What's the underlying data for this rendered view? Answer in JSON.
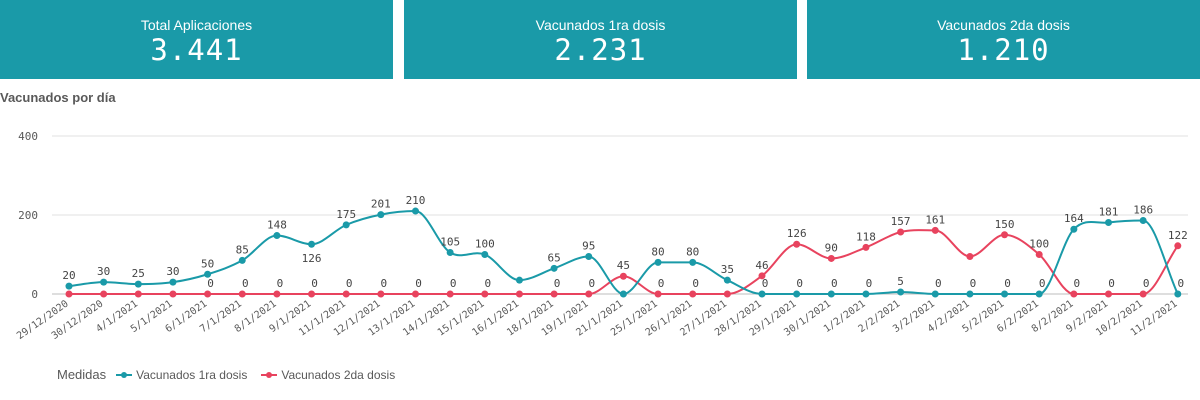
{
  "kpis": [
    {
      "label": "Total Aplicaciones",
      "value": "3.441"
    },
    {
      "label": "Vacunados 1ra dosis",
      "value": "2.231"
    },
    {
      "label": "Vacunados 2da dosis",
      "value": "1.210"
    }
  ],
  "legend": {
    "title": "Medidas"
  },
  "colors": {
    "kpi_bg": "#1a9aa8",
    "series1": "#1a9aa8",
    "series2": "#e8435e",
    "grid": "#e2e2e2",
    "axis_text": "#595959"
  },
  "chart_data": {
    "type": "line",
    "title": "Vacunados por día",
    "xlabel": "",
    "ylabel": "",
    "ylim": [
      0,
      400
    ],
    "yticks": [
      0,
      200,
      400
    ],
    "grid": true,
    "legend_position": "bottom-left",
    "x": [
      "29/12/2020",
      "30/12/2020",
      "4/1/2021",
      "5/1/2021",
      "6/1/2021",
      "7/1/2021",
      "8/1/2021",
      "9/1/2021",
      "11/1/2021",
      "12/1/2021",
      "13/1/2021",
      "14/1/2021",
      "15/1/2021",
      "16/1/2021",
      "18/1/2021",
      "19/1/2021",
      "21/1/2021",
      "25/1/2021",
      "26/1/2021",
      "27/1/2021",
      "28/1/2021",
      "29/1/2021",
      "30/1/2021",
      "1/2/2021",
      "2/2/2021",
      "3/2/2021",
      "4/2/2021",
      "5/2/2021",
      "6/2/2021",
      "8/2/2021",
      "9/2/2021",
      "10/2/2021",
      "11/2/2021"
    ],
    "series": [
      {
        "name": "Vacunados 1ra dosis",
        "values": [
          20,
          30,
          25,
          30,
          50,
          85,
          148,
          126,
          175,
          201,
          210,
          105,
          100,
          35,
          65,
          95,
          0,
          80,
          80,
          35,
          0,
          0,
          0,
          0,
          5,
          0,
          0,
          0,
          0,
          164,
          181,
          186,
          0
        ],
        "labels": [
          "20",
          "30",
          "25",
          "30",
          "50",
          "85",
          "148",
          "126",
          "175",
          "201",
          "210",
          "105",
          "100",
          "",
          "65",
          "95",
          "",
          "80",
          "80",
          "35",
          "0",
          "0",
          "0",
          "0",
          "5",
          "0",
          "0",
          "0",
          "0",
          "164",
          "181",
          "186",
          "0"
        ]
      },
      {
        "name": "Vacunados 2da dosis",
        "values": [
          0,
          0,
          0,
          0,
          0,
          0,
          0,
          0,
          0,
          0,
          0,
          0,
          0,
          0,
          0,
          0,
          45,
          0,
          0,
          0,
          46,
          126,
          90,
          118,
          157,
          161,
          95,
          150,
          100,
          0,
          0,
          0,
          122
        ],
        "labels": [
          "",
          "",
          "",
          "",
          "0",
          "0",
          "0",
          "0",
          "0",
          "0",
          "0",
          "0",
          "0",
          "",
          "0",
          "0",
          "45",
          "0",
          "0",
          "",
          "46",
          "126",
          "90",
          "118",
          "157",
          "161",
          "",
          "150",
          "100",
          "0",
          "0",
          "0",
          "122"
        ]
      }
    ]
  }
}
